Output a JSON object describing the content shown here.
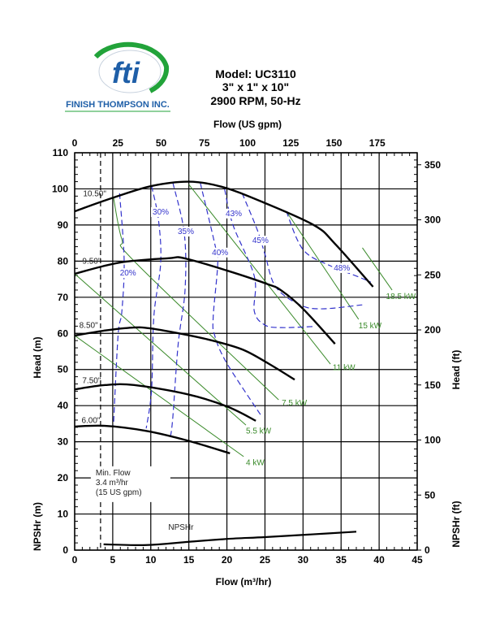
{
  "logo": {
    "brand_mark": "fti",
    "company": "FINISH THOMPSON INC."
  },
  "colors": {
    "curve": "#000000",
    "efficiency": "#3333cc",
    "power": "#3a8a2a",
    "logo_blue": "#1f5fa8",
    "logo_green": "#22a33a",
    "grid": "#000000"
  },
  "chart_data": {
    "type": "line",
    "title": "Model: UC3110",
    "subtitle_lines": [
      "3\" x 1\" x 10\"",
      "2900 RPM, 50-Hz"
    ],
    "xlabel": "Flow (m³/hr)",
    "x2label": "Flow (US gpm)",
    "ylabel": "Head (m)",
    "y2label": "Head (ft)",
    "npsh_ylabel": "NPSHr (m)",
    "npsh_y2label": "NPSHr (ft)",
    "xlim": [
      0,
      45
    ],
    "ylim": [
      0,
      110
    ],
    "grid": true,
    "x_ticks": [
      0,
      5,
      10,
      15,
      20,
      25,
      30,
      35,
      40,
      45
    ],
    "y_ticks": [
      0,
      10,
      20,
      30,
      40,
      50,
      60,
      70,
      80,
      90,
      100,
      110
    ],
    "npsh_y_ticks": [
      0,
      10,
      20
    ],
    "x2_ticks_gpm": [
      0,
      25,
      50,
      75,
      100,
      125,
      150,
      175
    ],
    "y2_ticks_ft": [
      0,
      50,
      100,
      150,
      200,
      250,
      300,
      350
    ],
    "impeller_curves": [
      {
        "name": "10.50\"",
        "points": [
          [
            0,
            93.8
          ],
          [
            5.1,
            97.6
          ],
          [
            10.1,
            100.8
          ],
          [
            15,
            102
          ],
          [
            19.3,
            100.6
          ],
          [
            24.3,
            96.7
          ],
          [
            31.4,
            90
          ],
          [
            34.2,
            84.8
          ],
          [
            39.2,
            72.9
          ]
        ]
      },
      {
        "name": "9.50\"",
        "points": [
          [
            0,
            76.5
          ],
          [
            5.9,
            79.6
          ],
          [
            12.3,
            80.8
          ],
          [
            14.4,
            80.8
          ],
          [
            20,
            77.4
          ],
          [
            25.4,
            73.6
          ],
          [
            27.2,
            71.8
          ],
          [
            30,
            66.8
          ],
          [
            34.2,
            57.1
          ]
        ]
      },
      {
        "name": "8.50\"",
        "points": [
          [
            0,
            59.4
          ],
          [
            4,
            60.8
          ],
          [
            7.6,
            61.6
          ],
          [
            9.9,
            61.4
          ],
          [
            14.7,
            59.6
          ],
          [
            18.5,
            57.8
          ],
          [
            22.2,
            55.4
          ],
          [
            25.5,
            51.6
          ],
          [
            28.9,
            47.2
          ]
        ]
      },
      {
        "name": "7.50\"",
        "points": [
          [
            0,
            44.5
          ],
          [
            4,
            45.7
          ],
          [
            7.8,
            45.7
          ],
          [
            14.7,
            43.2
          ],
          [
            20,
            39.8
          ],
          [
            23.8,
            35.8
          ]
        ]
      },
      {
        "name": "6.00\"",
        "points": [
          [
            0,
            34.2
          ],
          [
            4,
            34.4
          ],
          [
            9.4,
            33
          ],
          [
            14.7,
            30.4
          ],
          [
            20.4,
            26.8
          ]
        ]
      }
    ],
    "efficiency_curves": [
      {
        "name": "20%",
        "points": [
          [
            5.9,
            98.8
          ],
          [
            6.5,
            80.3
          ],
          [
            6.2,
            66.1
          ],
          [
            5.7,
            59.4
          ],
          [
            5.1,
            34.6
          ]
        ]
      },
      {
        "name": "30%",
        "points": [
          [
            10.1,
            100.8
          ],
          [
            11,
            91.6
          ],
          [
            11.3,
            79.6
          ],
          [
            10.4,
            64.6
          ],
          [
            10.1,
            44.3
          ],
          [
            9.4,
            33.7
          ]
        ]
      },
      {
        "name": "35%",
        "points": [
          [
            12.9,
            101.7
          ],
          [
            14.4,
            87.7
          ],
          [
            14.5,
            72
          ],
          [
            13.6,
            57.1
          ],
          [
            12.9,
            36.9
          ],
          [
            12.6,
            31.5
          ]
        ]
      },
      {
        "name": "40%",
        "points": [
          [
            16.5,
            101.7
          ],
          [
            18.4,
            84.8
          ],
          [
            18.8,
            79.6
          ],
          [
            18.2,
            64.6
          ],
          [
            18.4,
            59.4
          ],
          [
            20,
            51.7
          ],
          [
            24.6,
            36.9
          ]
        ]
      },
      {
        "name": "43%",
        "points": [
          [
            19.7,
            99.9
          ],
          [
            20.8,
            90
          ],
          [
            23.6,
            75.8
          ],
          [
            23.6,
            66.1
          ],
          [
            25,
            62.3
          ],
          [
            27.2,
            61.6
          ],
          [
            31.4,
            61.9
          ]
        ]
      },
      {
        "name": "45%",
        "points": [
          [
            22,
            98.8
          ],
          [
            24,
            88.6
          ],
          [
            25,
            81.9
          ],
          [
            26.4,
            72.9
          ],
          [
            29.6,
            67.9
          ],
          [
            32.5,
            66.8
          ],
          [
            37.8,
            67.9
          ]
        ]
      },
      {
        "name": "48%",
        "points": [
          [
            27.8,
            93.8
          ],
          [
            30,
            83.2
          ],
          [
            33.6,
            78.7
          ],
          [
            37.1,
            75.8
          ],
          [
            38.9,
            74.2
          ]
        ]
      }
    ],
    "power_lines": [
      {
        "name": "4 kW",
        "points": [
          [
            0,
            59.4
          ],
          [
            22.2,
            25.9
          ]
        ]
      },
      {
        "name": "5.5 kW",
        "points": [
          [
            0,
            76.5
          ],
          [
            22.5,
            34.6
          ]
        ]
      },
      {
        "name": "7.5 kW",
        "points": [
          [
            5.1,
            97.6
          ],
          [
            6.2,
            86
          ],
          [
            8,
            79.6
          ],
          [
            26.8,
            41.6
          ]
        ]
      },
      {
        "name": "11 kW",
        "points": [
          [
            15,
            101.2
          ],
          [
            33.6,
            51.5
          ]
        ]
      },
      {
        "name": "15 kW",
        "points": [
          [
            27.8,
            93.8
          ],
          [
            37.3,
            63.9
          ]
        ]
      },
      {
        "name": "18.5 kW",
        "points": [
          [
            37.8,
            83.7
          ],
          [
            41.7,
            72
          ]
        ]
      }
    ],
    "npshr_curve": {
      "name": "NPSHr",
      "points": [
        [
          3.8,
          1.6
        ],
        [
          9.4,
          1.4
        ],
        [
          15,
          2.3
        ],
        [
          20,
          3.1
        ],
        [
          25,
          3.6
        ],
        [
          30.7,
          4.3
        ],
        [
          37,
          5.1
        ]
      ]
    },
    "min_flow": {
      "x": 3.4,
      "label_lines": [
        "Min. Flow",
        "3.4 m³/hr",
        "(15 US gpm)"
      ]
    }
  }
}
